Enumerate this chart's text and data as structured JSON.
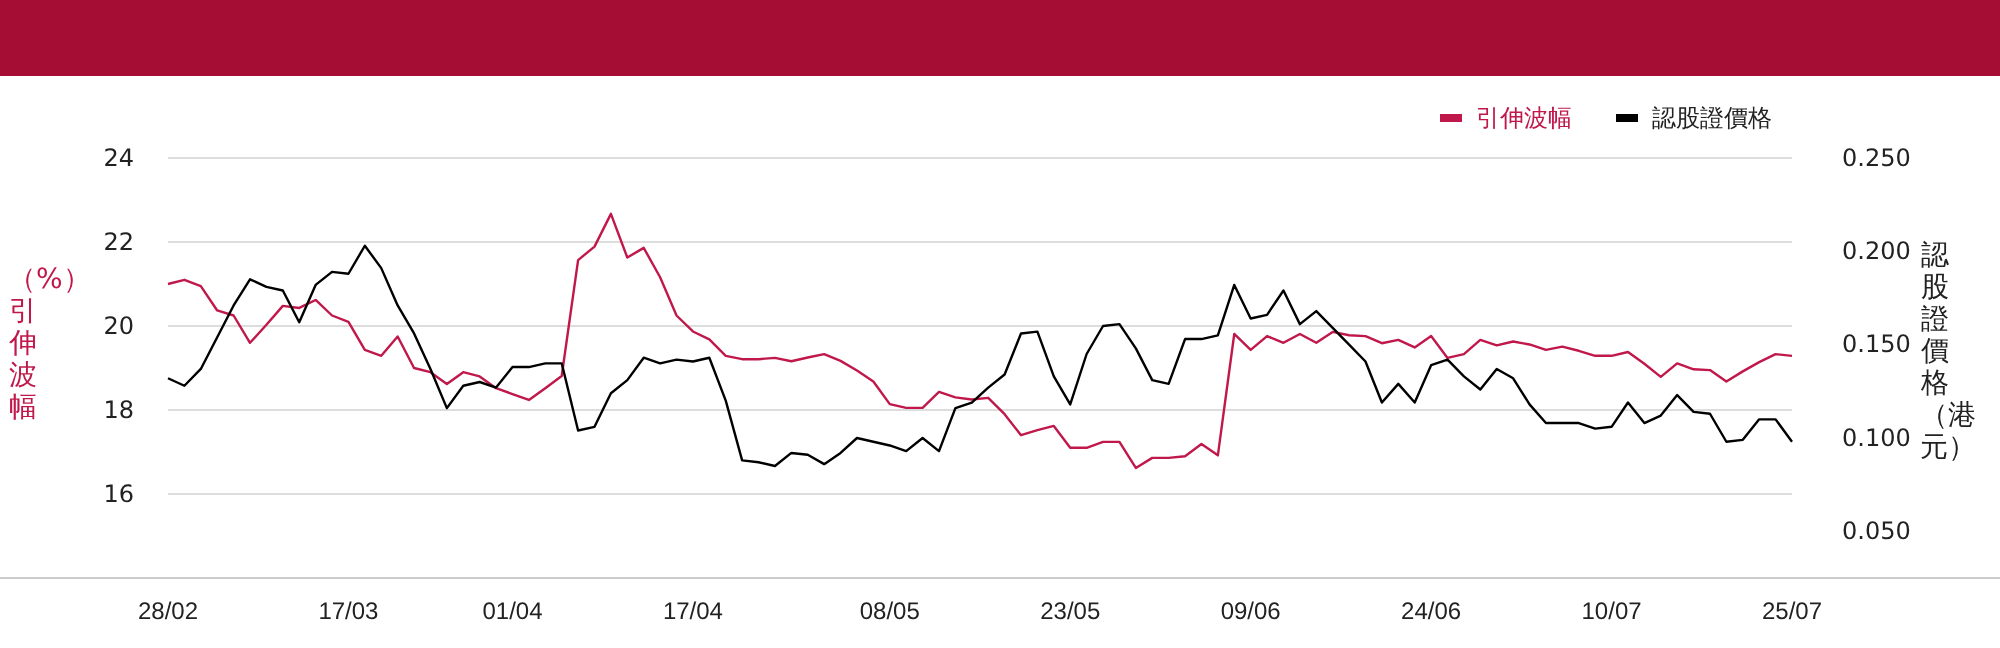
{
  "chart_data": {
    "type": "line",
    "ylabel": "（%）引伸波幅",
    "y2label": "認股證價格（港元）",
    "categories": [
      "28/02",
      null,
      null,
      null,
      null,
      null,
      null,
      null,
      null,
      null,
      null,
      "17/03",
      null,
      null,
      null,
      null,
      null,
      null,
      null,
      null,
      null,
      "01/04",
      null,
      null,
      null,
      null,
      null,
      null,
      null,
      null,
      null,
      null,
      "17/04",
      null,
      null,
      null,
      null,
      null,
      null,
      null,
      null,
      null,
      null,
      null,
      "08/05",
      null,
      null,
      null,
      null,
      null,
      null,
      null,
      null,
      null,
      null,
      "23/05",
      null,
      null,
      null,
      null,
      null,
      null,
      null,
      null,
      null,
      null,
      "09/06",
      null,
      null,
      null,
      null,
      null,
      null,
      null,
      null,
      null,
      null,
      "24/06",
      null,
      null,
      null,
      null,
      null,
      null,
      null,
      null,
      null,
      null,
      "10/07",
      null,
      null,
      null,
      null,
      null,
      null,
      null,
      null,
      null,
      null,
      "25/07"
    ],
    "ylim": [
      14,
      24
    ],
    "yticks": [
      16,
      18,
      20,
      22,
      24
    ],
    "y2lim": [
      0.025,
      0.25
    ],
    "y2ticks": [
      {
        "value": 0.05,
        "label": "0.050"
      },
      {
        "value": 0.1,
        "label": "0.100"
      },
      {
        "value": 0.15,
        "label": "0.150"
      },
      {
        "value": 0.2,
        "label": "0.200"
      },
      {
        "value": 0.25,
        "label": "0.250"
      }
    ],
    "grid": "y",
    "legend": "top right",
    "marker": "none",
    "line_style": "solid",
    "series": [
      {
        "name": "引伸波幅",
        "color": "#c0184a",
        "values": [
          21.0,
          21.1,
          20.95,
          20.37,
          20.25,
          19.6,
          20.03,
          20.48,
          20.43,
          20.62,
          20.25,
          20.1,
          19.43,
          19.29,
          19.75,
          19.0,
          18.9,
          18.62,
          18.9,
          18.8,
          18.52,
          18.38,
          18.24,
          18.52,
          18.81,
          21.57,
          21.89,
          22.67,
          21.63,
          21.86,
          21.16,
          20.25,
          19.87,
          19.68,
          19.29,
          19.21,
          19.21,
          19.24,
          19.16,
          19.25,
          19.33,
          19.17,
          18.94,
          18.68,
          18.14,
          18.05,
          18.05,
          18.43,
          18.3,
          18.25,
          18.29,
          17.9,
          17.4,
          17.52,
          17.62,
          17.1,
          17.1,
          17.24,
          17.24,
          16.62,
          16.86,
          16.86,
          16.9,
          17.19,
          16.92,
          19.81,
          19.43,
          19.76,
          19.6,
          19.81,
          19.6,
          19.86,
          19.78,
          19.76,
          19.59,
          19.67,
          19.49,
          19.76,
          19.24,
          19.33,
          19.67,
          19.54,
          19.63,
          19.56,
          19.43,
          19.51,
          19.41,
          19.29,
          19.29,
          19.38,
          19.1,
          18.79,
          19.11,
          18.97,
          18.95,
          18.68,
          18.92,
          19.14,
          19.33,
          19.29
        ]
      },
      {
        "name": "認股證價格",
        "color": "#000000",
        "axis": "y2",
        "values": [
          0.132,
          0.128,
          0.137,
          0.154,
          0.171,
          0.185,
          0.181,
          0.179,
          0.162,
          0.182,
          0.189,
          0.188,
          0.203,
          0.191,
          0.171,
          0.156,
          0.137,
          0.116,
          0.128,
          0.13,
          0.127,
          0.138,
          0.138,
          0.14,
          0.14,
          0.104,
          0.106,
          0.124,
          0.131,
          0.143,
          0.14,
          0.142,
          0.141,
          0.143,
          0.12,
          0.088,
          0.087,
          0.085,
          0.092,
          0.091,
          0.086,
          0.092,
          0.1,
          0.098,
          0.096,
          0.093,
          0.1,
          0.093,
          0.116,
          0.119,
          0.127,
          0.134,
          0.156,
          0.157,
          0.133,
          0.118,
          0.145,
          0.16,
          0.161,
          0.148,
          0.131,
          0.129,
          0.153,
          0.153,
          0.155,
          0.182,
          0.164,
          0.166,
          0.179,
          0.161,
          0.168,
          0.159,
          0.15,
          0.141,
          0.119,
          0.129,
          0.119,
          0.139,
          0.142,
          0.133,
          0.126,
          0.137,
          0.132,
          0.118,
          0.108,
          0.108,
          0.108,
          0.105,
          0.106,
          0.119,
          0.108,
          0.112,
          0.123,
          0.114,
          0.113,
          0.098,
          0.099,
          0.11,
          0.11,
          0.098
        ]
      }
    ]
  }
}
